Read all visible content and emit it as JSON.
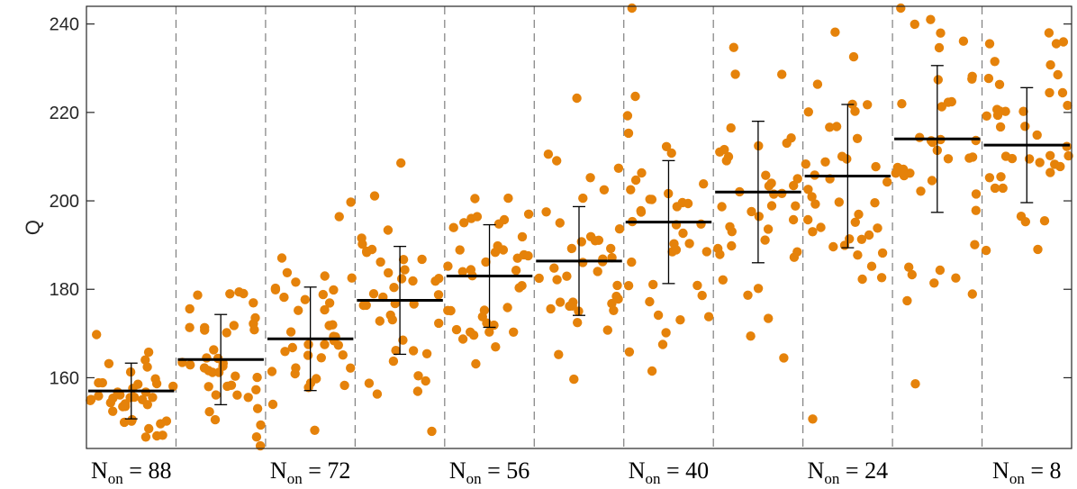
{
  "chart_data": {
    "type": "scatter",
    "title": "",
    "ylabel": "Q",
    "xlabel": "",
    "ylim": [
      144,
      244
    ],
    "yticks": [
      160,
      180,
      200,
      220,
      240
    ],
    "grid": false,
    "legend": "none",
    "bins": 11,
    "separators": "dashed vertical lines between bins",
    "xtick_labels": [
      {
        "bin_center": 1,
        "main": "N",
        "sub": "on",
        "rest": " = 88"
      },
      {
        "bin_center": 3,
        "main": "N",
        "sub": "on",
        "rest": " = 72"
      },
      {
        "bin_center": 5,
        "main": "N",
        "sub": "on",
        "rest": " = 56"
      },
      {
        "bin_center": 7,
        "main": "N",
        "sub": "on",
        "rest": " = 40"
      },
      {
        "bin_center": 9,
        "main": "N",
        "sub": "on",
        "rest": " = 24"
      },
      {
        "bin_center": 11,
        "main": "N",
        "sub": "on",
        "rest": " = 8"
      }
    ],
    "groups": [
      {
        "mean": 157.0,
        "std": 6.3
      },
      {
        "mean": 164.1,
        "std": 10.2
      },
      {
        "mean": 168.8,
        "std": 11.7
      },
      {
        "mean": 177.5,
        "std": 12.2
      },
      {
        "mean": 183.0,
        "std": 11.6
      },
      {
        "mean": 186.4,
        "std": 12.3
      },
      {
        "mean": 195.2,
        "std": 13.9
      },
      {
        "mean": 202.0,
        "std": 16.0
      },
      {
        "mean": 205.6,
        "std": 16.2
      },
      {
        "mean": 214.0,
        "std": 16.6
      },
      {
        "mean": 212.6,
        "std": 13.0
      }
    ],
    "points_per_group": 40,
    "colors": {
      "points": "#E5820A",
      "mean_bar": "#000000",
      "separator": "#7f7f7f",
      "axis": "#262626"
    }
  }
}
